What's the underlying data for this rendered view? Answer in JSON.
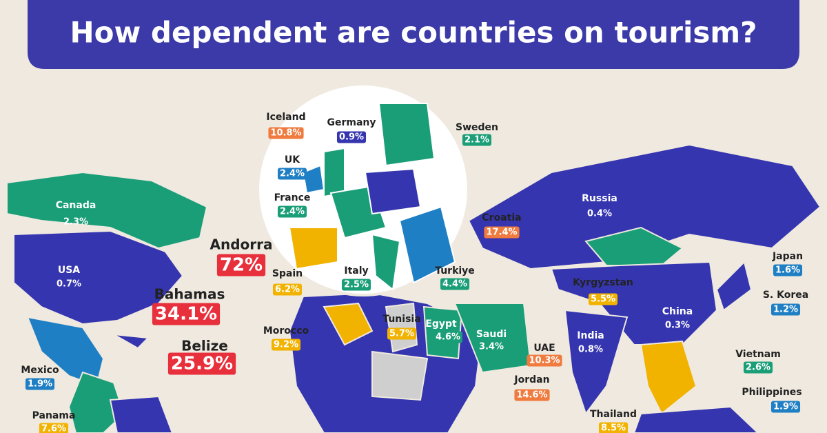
{
  "title": "How dependent are countries on tourism?",
  "countries": [
    {
      "name": "Iceland",
      "value": "10.8%"
    },
    {
      "name": "Germany",
      "value": "0.9%"
    },
    {
      "name": "Sweden",
      "value": "2.1%"
    },
    {
      "name": "UK",
      "value": "2.4%"
    },
    {
      "name": "France",
      "value": "2.4%"
    },
    {
      "name": "Andorra",
      "value": "72%"
    },
    {
      "name": "Croatia",
      "value": "17.4%"
    },
    {
      "name": "Russia",
      "value": "0.4%"
    },
    {
      "name": "Canada",
      "value": "2.3%"
    },
    {
      "name": "USA",
      "value": "0.7%"
    },
    {
      "name": "Spain",
      "value": "6.2%"
    },
    {
      "name": "Italy",
      "value": "2.5%"
    },
    {
      "name": "Turkiye",
      "value": "4.4%"
    },
    {
      "name": "Japan",
      "value": "1.6%"
    },
    {
      "name": "Kyrgyzstan",
      "value": "5.5%"
    },
    {
      "name": "S. Korea",
      "value": "1.2%"
    },
    {
      "name": "China",
      "value": "0.3%"
    },
    {
      "name": "Bahamas",
      "value": "34.1%"
    },
    {
      "name": "Tunisia",
      "value": "5.7%"
    },
    {
      "name": "Egypt",
      "value": "4.6%"
    },
    {
      "name": "Saudi",
      "value": "3.4%"
    },
    {
      "name": "India",
      "value": "0.8%"
    },
    {
      "name": "Morocco",
      "value": "9.2%"
    },
    {
      "name": "UAE",
      "value": "10.3%"
    },
    {
      "name": "Belize",
      "value": "25.9%"
    },
    {
      "name": "Mexico",
      "value": "1.9%"
    },
    {
      "name": "Vietnam",
      "value": "2.6%"
    },
    {
      "name": "Jordan",
      "value": "14.6%"
    },
    {
      "name": "Philippines",
      "value": "1.9%"
    },
    {
      "name": "Panama",
      "value": "7.6%"
    },
    {
      "name": "Thailand",
      "value": "8.5%"
    }
  ]
}
